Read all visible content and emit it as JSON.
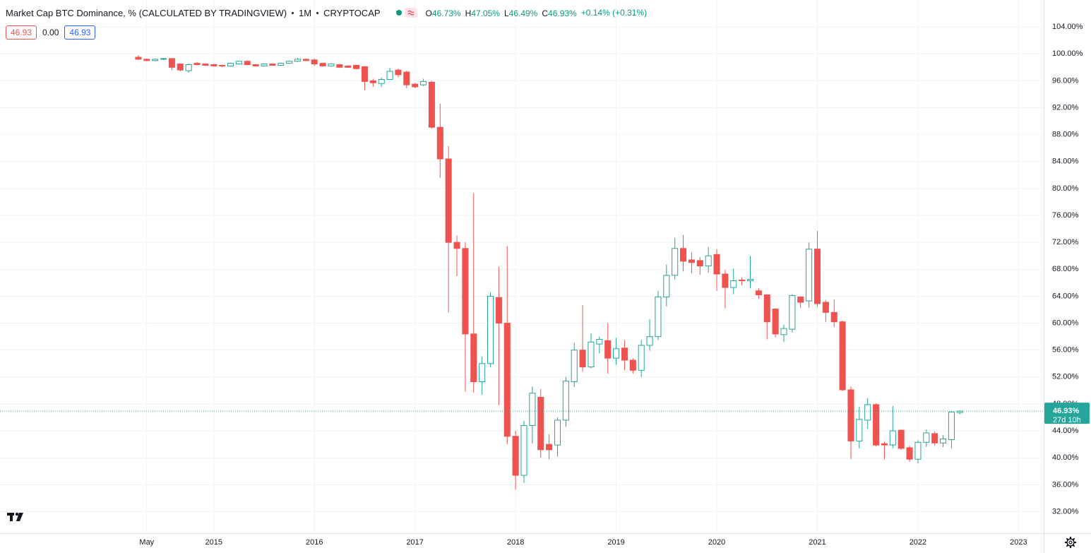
{
  "chart_data": {
    "type": "candlestick",
    "title": "Market Cap BTC Dominance, % (CALCULATED BY TRADINGVIEW)",
    "interval": "1M",
    "source": "CRYPTOCAP",
    "legend": [
      {
        "key": "O",
        "text": "46.73%"
      },
      {
        "key": "H",
        "text": "47.05%"
      },
      {
        "key": "L",
        "text": "46.49%"
      },
      {
        "key": "C",
        "text": "46.93%"
      }
    ],
    "change": "+0.14% (+0.31%)",
    "boxes": [
      "46.93",
      "0.00",
      "46.93"
    ],
    "up_color": "#26a69a",
    "down_color": "#ef5350",
    "grid": true,
    "x": [
      "2014-04",
      "2014-05",
      "2014-06",
      "2014-07",
      "2014-08",
      "2014-09",
      "2014-10",
      "2014-11",
      "2014-12",
      "2015-01",
      "2015-02",
      "2015-03",
      "2015-04",
      "2015-05",
      "2015-06",
      "2015-07",
      "2015-08",
      "2015-09",
      "2015-10",
      "2015-11",
      "2015-12",
      "2016-01",
      "2016-02",
      "2016-03",
      "2016-04",
      "2016-05",
      "2016-06",
      "2016-07",
      "2016-08",
      "2016-09",
      "2016-10",
      "2016-11",
      "2016-12",
      "2017-01",
      "2017-02",
      "2017-03",
      "2017-04",
      "2017-05",
      "2017-06",
      "2017-07",
      "2017-08",
      "2017-09",
      "2017-10",
      "2017-11",
      "2017-12",
      "2018-01",
      "2018-02",
      "2018-03",
      "2018-04",
      "2018-05",
      "2018-06",
      "2018-07",
      "2018-08",
      "2018-09",
      "2018-10",
      "2018-11",
      "2018-12",
      "2019-01",
      "2019-02",
      "2019-03",
      "2019-04",
      "2019-05",
      "2019-06",
      "2019-07",
      "2019-08",
      "2019-09",
      "2019-10",
      "2019-11",
      "2019-12",
      "2020-01",
      "2020-02",
      "2020-03",
      "2020-04",
      "2020-05",
      "2020-06",
      "2020-07",
      "2020-08",
      "2020-09",
      "2020-10",
      "2020-11",
      "2020-12",
      "2021-01",
      "2021-02",
      "2021-03",
      "2021-04",
      "2021-05",
      "2021-06",
      "2021-07",
      "2021-08",
      "2021-09",
      "2021-10",
      "2021-11",
      "2021-12",
      "2022-01",
      "2022-02",
      "2022-03",
      "2022-04",
      "2022-05",
      "2022-06"
    ],
    "open": [
      99.5,
      99.2,
      99.0,
      99.2,
      99.3,
      98.5,
      97.5,
      98.6,
      98.5,
      98.4,
      98.3,
      98.2,
      98.5,
      98.9,
      98.4,
      98.2,
      98.5,
      98.3,
      98.6,
      98.9,
      99.2,
      99.1,
      98.6,
      98.2,
      98.4,
      98.2,
      98.3,
      98.1,
      96.0,
      95.6,
      96.2,
      97.6,
      97.3,
      95.5,
      95.4,
      95.8,
      89.1,
      84.4,
      72.0,
      71.1,
      58.4,
      51.3,
      54.0,
      63.8,
      60.0,
      43.2,
      37.4,
      44.8,
      49.0,
      42.0,
      41.9,
      45.6,
      51.3,
      56.0,
      53.5,
      56.9,
      57.4,
      54.8,
      56.3,
      54.5,
      53.0,
      56.7,
      58.0,
      63.9,
      67.1,
      71.1,
      69.4,
      69.3,
      68.5,
      70.2,
      67.3,
      65.3,
      66.4,
      66.3,
      64.8,
      64.2,
      62.1,
      58.3,
      59.1,
      63.9,
      63.3,
      71.0,
      63.1,
      61.6,
      60.2,
      50.1,
      42.5,
      45.6,
      47.9,
      42.1,
      41.9,
      44.1,
      41.5,
      39.8,
      42.3,
      43.6,
      42.2,
      42.7,
      46.73
    ],
    "high": [
      99.8,
      99.3,
      99.3,
      99.4,
      99.4,
      98.6,
      98.6,
      98.8,
      98.6,
      98.5,
      98.4,
      98.7,
      99.0,
      99.0,
      98.5,
      98.6,
      98.6,
      98.7,
      99.0,
      99.4,
      99.3,
      99.3,
      98.7,
      98.6,
      98.5,
      98.3,
      98.4,
      98.2,
      96.3,
      96.5,
      97.9,
      97.8,
      97.5,
      95.7,
      96.3,
      96.0,
      92.6,
      86.3,
      73.0,
      72.0,
      79.3,
      55.0,
      64.6,
      68.4,
      71.4,
      44.0,
      45.5,
      50.6,
      50.2,
      43.5,
      46.0,
      52.0,
      57.1,
      62.7,
      58.5,
      58.0,
      60.0,
      57.8,
      57.5,
      54.8,
      57.5,
      60.6,
      64.8,
      68.7,
      72.7,
      73.1,
      70.5,
      69.8,
      71.3,
      71.0,
      67.9,
      68.1,
      66.8,
      70.0,
      65.2,
      64.3,
      62.2,
      59.8,
      64.3,
      64.0,
      72.0,
      73.7,
      63.4,
      63.5,
      60.4,
      50.6,
      47.6,
      48.9,
      48.1,
      42.4,
      47.7,
      44.2,
      41.8,
      42.6,
      44.2,
      43.9,
      43.4,
      47.0,
      47.05
    ],
    "low": [
      99.1,
      98.9,
      98.9,
      99.1,
      97.6,
      97.4,
      97.2,
      98.3,
      98.2,
      98.1,
      98.0,
      98.1,
      98.4,
      98.3,
      98.1,
      98.1,
      98.2,
      98.2,
      98.5,
      98.8,
      98.9,
      98.2,
      98.1,
      98.1,
      97.9,
      97.9,
      97.7,
      94.6,
      95.1,
      95.1,
      96.4,
      96.5,
      94.9,
      94.9,
      95.2,
      88.9,
      81.6,
      61.6,
      67.0,
      49.8,
      49.7,
      49.4,
      53.5,
      47.8,
      42.0,
      35.3,
      36.3,
      42.1,
      40.0,
      39.8,
      40.2,
      44.6,
      50.5,
      52.8,
      53.3,
      55.5,
      52.5,
      53.8,
      53.0,
      52.5,
      52.0,
      55.9,
      57.5,
      62.5,
      66.5,
      67.7,
      67.4,
      67.2,
      67.5,
      64.8,
      62.2,
      64.3,
      65.6,
      65.2,
      63.6,
      57.6,
      57.9,
      57.2,
      58.6,
      62.3,
      62.3,
      62.5,
      60.2,
      59.4,
      49.9,
      39.8,
      41.4,
      44.3,
      41.7,
      39.8,
      41.4,
      41.2,
      39.4,
      39.2,
      41.6,
      41.8,
      41.6,
      41.4,
      46.49
    ],
    "close": [
      99.2,
      99.0,
      99.2,
      99.3,
      98.0,
      97.6,
      98.4,
      98.4,
      98.3,
      98.2,
      98.2,
      98.6,
      98.9,
      98.4,
      98.2,
      98.5,
      98.3,
      98.6,
      98.9,
      99.2,
      99.0,
      98.5,
      98.2,
      98.5,
      98.0,
      98.0,
      97.8,
      95.9,
      95.7,
      96.2,
      97.4,
      96.9,
      95.4,
      95.1,
      95.9,
      89.1,
      84.4,
      72.0,
      71.1,
      58.4,
      51.3,
      54.0,
      64.0,
      60.0,
      43.2,
      37.4,
      44.8,
      49.6,
      41.2,
      41.2,
      45.6,
      51.4,
      56.0,
      53.5,
      57.2,
      57.6,
      54.8,
      56.2,
      54.5,
      53.0,
      56.7,
      58.0,
      63.9,
      67.1,
      71.1,
      69.2,
      69.0,
      68.5,
      70.0,
      67.3,
      65.3,
      66.3,
      66.3,
      66.5,
      64.2,
      60.2,
      58.4,
      59.2,
      64.1,
      63.1,
      71.0,
      62.9,
      61.6,
      60.2,
      50.1,
      42.5,
      45.7,
      47.9,
      41.9,
      41.9,
      44.0,
      41.4,
      39.8,
      42.3,
      43.7,
      42.2,
      42.8,
      46.8,
      46.93
    ],
    "xlim": [
      "2012-12",
      "2023-04"
    ],
    "xticks": [
      {
        "value": "2014-05",
        "label": "May"
      },
      {
        "value": "2015-01",
        "label": "2015"
      },
      {
        "value": "2016-01",
        "label": "2016"
      },
      {
        "value": "2017-01",
        "label": "2017"
      },
      {
        "value": "2018-01",
        "label": "2018"
      },
      {
        "value": "2019-01",
        "label": "2019"
      },
      {
        "value": "2020-01",
        "label": "2020"
      },
      {
        "value": "2021-01",
        "label": "2021"
      },
      {
        "value": "2022-01",
        "label": "2022"
      },
      {
        "value": "2023-01",
        "label": "2023"
      }
    ],
    "ylim": [
      28.8,
      108
    ],
    "yticks": [
      {
        "value": 32,
        "label": "32.00%"
      },
      {
        "value": 36,
        "label": "36.00%"
      },
      {
        "value": 40,
        "label": "40.00%"
      },
      {
        "value": 44,
        "label": "44.00%"
      },
      {
        "value": 48,
        "label": "48.00%"
      },
      {
        "value": 52,
        "label": "52.00%"
      },
      {
        "value": 56,
        "label": "56.00%"
      },
      {
        "value": 60,
        "label": "60.00%"
      },
      {
        "value": 64,
        "label": "64.00%"
      },
      {
        "value": 68,
        "label": "68.00%"
      },
      {
        "value": 72,
        "label": "72.00%"
      },
      {
        "value": 76,
        "label": "76.00%"
      },
      {
        "value": 80,
        "label": "80.00%"
      },
      {
        "value": 84,
        "label": "84.00%"
      },
      {
        "value": 88,
        "label": "88.00%"
      },
      {
        "value": 92,
        "label": "92.00%"
      },
      {
        "value": 96,
        "label": "96.00%"
      },
      {
        "value": 100,
        "label": "100.00%"
      },
      {
        "value": 104,
        "label": "104.00%"
      }
    ],
    "last_price": {
      "value": 46.93,
      "label": "46.93%",
      "countdown": "27d 10h"
    }
  }
}
